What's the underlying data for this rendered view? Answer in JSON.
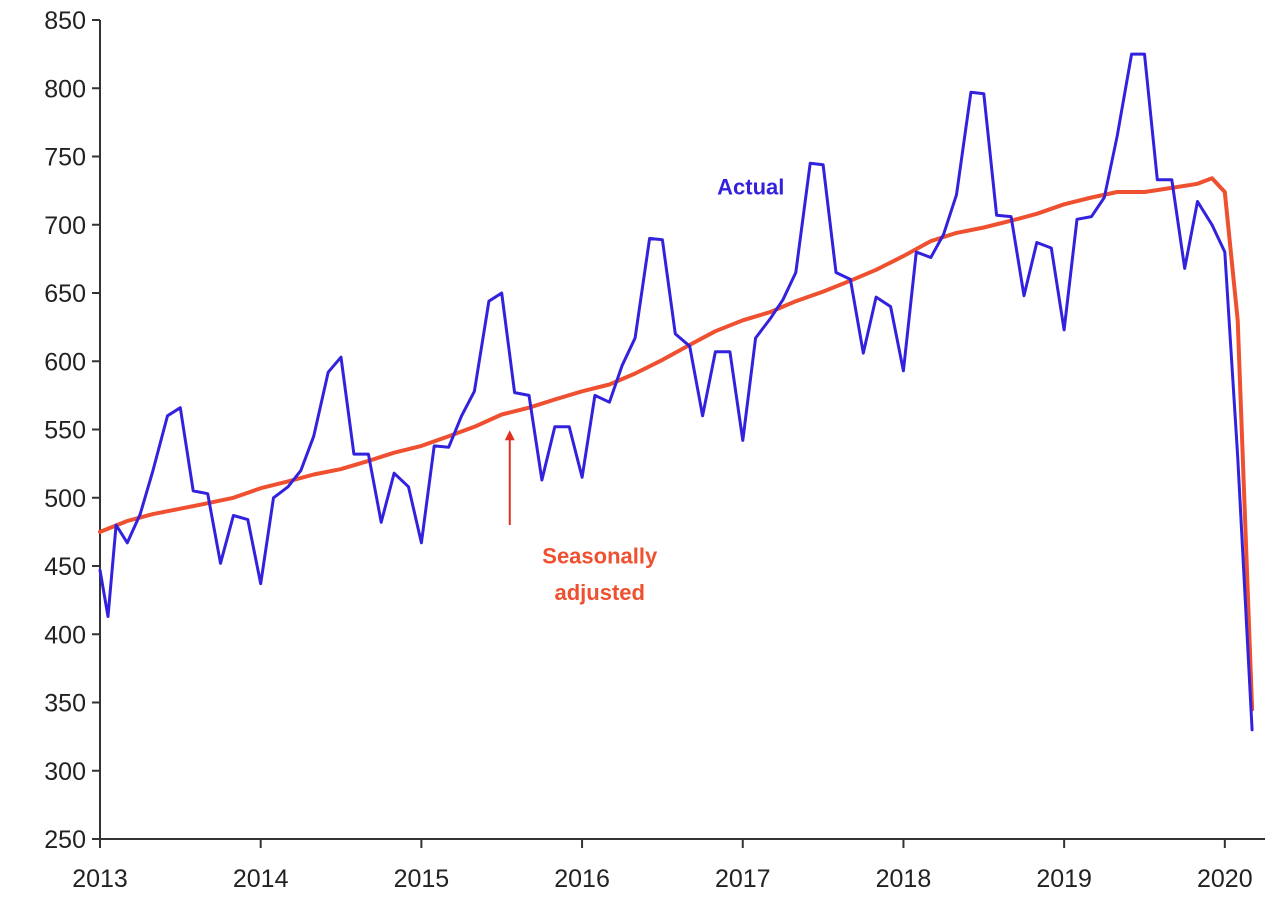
{
  "chart_data": {
    "type": "line",
    "title": "",
    "xlabel": "",
    "ylabel": "",
    "xlim": [
      2013.0,
      2020.25
    ],
    "ylim": [
      250,
      850
    ],
    "x_ticks": [
      2013,
      2014,
      2015,
      2016,
      2017,
      2018,
      2019,
      2020
    ],
    "x_tick_labels": [
      "2013",
      "2014",
      "2015",
      "2016",
      "2017",
      "2018",
      "2019",
      "2020"
    ],
    "y_ticks": [
      250,
      300,
      350,
      400,
      450,
      500,
      550,
      600,
      650,
      700,
      750,
      800,
      850
    ],
    "y_tick_labels": [
      "250",
      "300",
      "350",
      "400",
      "450",
      "500",
      "550",
      "600",
      "650",
      "700",
      "750",
      "800",
      "850"
    ],
    "grid": false,
    "legend": "none",
    "series": [
      {
        "name": "Actual",
        "color": "#3322dd",
        "points": [
          [
            2013.0,
            447
          ],
          [
            2013.05,
            413
          ],
          [
            2013.1,
            480
          ],
          [
            2013.17,
            467
          ],
          [
            2013.25,
            488
          ],
          [
            2013.33,
            520
          ],
          [
            2013.42,
            560
          ],
          [
            2013.5,
            566
          ],
          [
            2013.58,
            505
          ],
          [
            2013.67,
            503
          ],
          [
            2013.75,
            452
          ],
          [
            2013.83,
            487
          ],
          [
            2013.92,
            484
          ],
          [
            2014.0,
            437
          ],
          [
            2014.08,
            500
          ],
          [
            2014.17,
            508
          ],
          [
            2014.25,
            520
          ],
          [
            2014.33,
            545
          ],
          [
            2014.42,
            592
          ],
          [
            2014.5,
            603
          ],
          [
            2014.58,
            532
          ],
          [
            2014.67,
            532
          ],
          [
            2014.75,
            482
          ],
          [
            2014.83,
            518
          ],
          [
            2014.92,
            508
          ],
          [
            2015.0,
            467
          ],
          [
            2015.08,
            538
          ],
          [
            2015.17,
            537
          ],
          [
            2015.25,
            560
          ],
          [
            2015.33,
            578
          ],
          [
            2015.42,
            644
          ],
          [
            2015.5,
            650
          ],
          [
            2015.58,
            577
          ],
          [
            2015.67,
            575
          ],
          [
            2015.75,
            513
          ],
          [
            2015.83,
            552
          ],
          [
            2015.92,
            552
          ],
          [
            2016.0,
            515
          ],
          [
            2016.08,
            575
          ],
          [
            2016.17,
            570
          ],
          [
            2016.25,
            597
          ],
          [
            2016.33,
            617
          ],
          [
            2016.42,
            690
          ],
          [
            2016.5,
            689
          ],
          [
            2016.58,
            620
          ],
          [
            2016.67,
            611
          ],
          [
            2016.75,
            560
          ],
          [
            2016.83,
            607
          ],
          [
            2016.92,
            607
          ],
          [
            2017.0,
            542
          ],
          [
            2017.08,
            617
          ],
          [
            2017.17,
            631
          ],
          [
            2017.25,
            645
          ],
          [
            2017.33,
            665
          ],
          [
            2017.42,
            745
          ],
          [
            2017.5,
            744
          ],
          [
            2017.58,
            665
          ],
          [
            2017.67,
            660
          ],
          [
            2017.75,
            606
          ],
          [
            2017.83,
            647
          ],
          [
            2017.92,
            640
          ],
          [
            2018.0,
            593
          ],
          [
            2018.08,
            680
          ],
          [
            2018.17,
            676
          ],
          [
            2018.25,
            693
          ],
          [
            2018.33,
            722
          ],
          [
            2018.42,
            797
          ],
          [
            2018.5,
            796
          ],
          [
            2018.58,
            707
          ],
          [
            2018.67,
            706
          ],
          [
            2018.75,
            648
          ],
          [
            2018.83,
            687
          ],
          [
            2018.92,
            683
          ],
          [
            2019.0,
            623
          ],
          [
            2019.08,
            704
          ],
          [
            2019.17,
            706
          ],
          [
            2019.25,
            720
          ],
          [
            2019.33,
            765
          ],
          [
            2019.42,
            825
          ],
          [
            2019.5,
            825
          ],
          [
            2019.58,
            733
          ],
          [
            2019.67,
            733
          ],
          [
            2019.75,
            668
          ],
          [
            2019.83,
            717
          ],
          [
            2019.92,
            700
          ],
          [
            2020.0,
            680
          ],
          [
            2020.08,
            530
          ],
          [
            2020.17,
            330
          ]
        ]
      },
      {
        "name": "Seasonally adjusted",
        "color": "#ef5030",
        "points": [
          [
            2013.0,
            475
          ],
          [
            2013.17,
            483
          ],
          [
            2013.33,
            488
          ],
          [
            2013.5,
            492
          ],
          [
            2013.67,
            496
          ],
          [
            2013.83,
            500
          ],
          [
            2014.0,
            507
          ],
          [
            2014.17,
            512
          ],
          [
            2014.33,
            517
          ],
          [
            2014.5,
            521
          ],
          [
            2014.67,
            527
          ],
          [
            2014.83,
            533
          ],
          [
            2015.0,
            538
          ],
          [
            2015.17,
            545
          ],
          [
            2015.33,
            552
          ],
          [
            2015.5,
            561
          ],
          [
            2015.67,
            566
          ],
          [
            2015.83,
            572
          ],
          [
            2016.0,
            578
          ],
          [
            2016.17,
            583
          ],
          [
            2016.33,
            591
          ],
          [
            2016.5,
            601
          ],
          [
            2016.67,
            612
          ],
          [
            2016.83,
            622
          ],
          [
            2017.0,
            630
          ],
          [
            2017.17,
            636
          ],
          [
            2017.33,
            644
          ],
          [
            2017.5,
            651
          ],
          [
            2017.67,
            659
          ],
          [
            2017.83,
            667
          ],
          [
            2018.0,
            677
          ],
          [
            2018.17,
            688
          ],
          [
            2018.33,
            694
          ],
          [
            2018.5,
            698
          ],
          [
            2018.67,
            703
          ],
          [
            2018.83,
            708
          ],
          [
            2019.0,
            715
          ],
          [
            2019.17,
            720
          ],
          [
            2019.33,
            724
          ],
          [
            2019.5,
            724
          ],
          [
            2019.67,
            727
          ],
          [
            2019.83,
            730
          ],
          [
            2019.92,
            734
          ],
          [
            2020.0,
            724
          ],
          [
            2020.08,
            630
          ],
          [
            2020.17,
            345
          ]
        ]
      }
    ],
    "annotations": [
      {
        "text": "Actual",
        "color": "#3322dd",
        "x": 2017.05,
        "y": 722
      },
      {
        "text": "Seasonally",
        "color": "#ef5030",
        "x": 2016.11,
        "y": 452
      },
      {
        "text": "adjusted",
        "color": "#ef5030",
        "x": 2016.11,
        "y": 425
      }
    ],
    "arrow": {
      "color": "#e03020",
      "from": [
        2015.55,
        480
      ],
      "to": [
        2015.55,
        548
      ]
    }
  }
}
